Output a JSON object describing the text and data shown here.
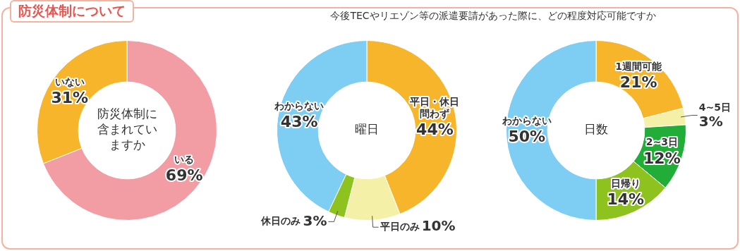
{
  "chart_data": [
    {
      "type": "donut",
      "title": "防災体制について",
      "annotations": [
        "防災体制に含まれていますか"
      ],
      "categories": [
        "いる",
        "いない"
      ],
      "values": [
        69,
        31
      ],
      "value_labels": [
        "69%",
        "31%"
      ],
      "colors": [
        "#f29ca3",
        "#f7b52c"
      ],
      "legend": false
    },
    {
      "type": "donut",
      "title": "今後TECやリエゾン等の派遣要請があった際に、どの程度対応可能ですか",
      "annotations": [
        "曜日"
      ],
      "categories": [
        "平日・休日問わず",
        "平日のみ",
        "休日のみ",
        "わからない"
      ],
      "values": [
        44,
        10,
        3,
        43
      ],
      "value_labels": [
        "44%",
        "10%",
        "3%",
        "43%"
      ],
      "colors": [
        "#f7b52c",
        "#f5f0a8",
        "#8dc21f",
        "#7ecef4"
      ],
      "legend": false
    },
    {
      "type": "donut",
      "annotations": [
        "日数"
      ],
      "categories": [
        "1週間可能",
        "4~5日",
        "2~3日",
        "日帰り",
        "わからない"
      ],
      "values": [
        21,
        3,
        12,
        14,
        50
      ],
      "value_labels": [
        "21%",
        "3%",
        "12%",
        "14%",
        "50%"
      ],
      "colors": [
        "#f7b52c",
        "#f5f0a8",
        "#22ac38",
        "#8dc21f",
        "#7ecef4"
      ],
      "legend": false
    }
  ]
}
